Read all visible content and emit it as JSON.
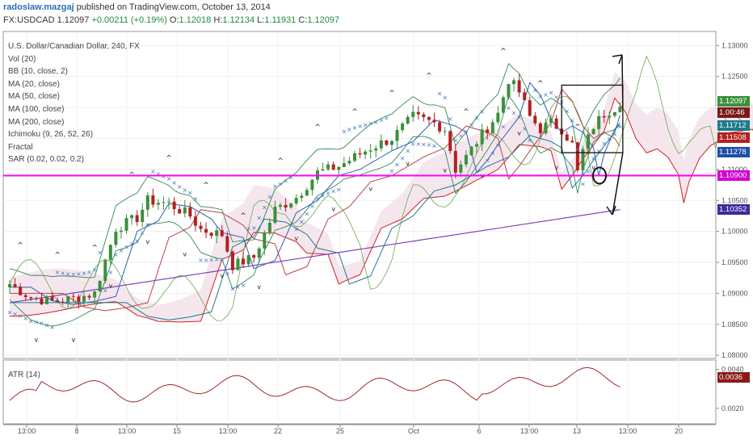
{
  "header": {
    "author": "radoslaw.mazgaj",
    "published": " published on TradingView.com, October 13, 2014",
    "symbol": "FX:USDCAD",
    "price": "1.12097",
    "change": "+0.00211 (+0.19%)",
    "o_label": "O:",
    "o": "1.12018",
    "h_label": "H:",
    "h": "1.12134",
    "l_label": "L:",
    "l": "1.11931",
    "c_label": "C:",
    "c": "1.12097"
  },
  "legend": [
    "U.S. Dollar/Canadian Dollar, 240, FX",
    "Vol (20)",
    "BB (10, close, 2)",
    "MA (20, close)",
    "MA (50, close)",
    "MA (100, close)",
    "MA (200, close)",
    "Ichimoku (9, 26, 52, 26)",
    "Fractal",
    "SAR (0.02, 0.02, 0.2)"
  ],
  "atr_label": "ATR (14)",
  "price_tags": [
    {
      "text": "1.12097",
      "value": 1.12097,
      "color": "#3c8f3c"
    },
    {
      "text": "1.00:46",
      "value": 1.1192,
      "color": "#7a1a1a"
    },
    {
      "text": "1.11712",
      "value": 1.11712,
      "color": "#1f7a8c"
    },
    {
      "text": "1.11508",
      "value": 1.11508,
      "color": "#b22020"
    },
    {
      "text": "1.11278",
      "value": 1.11278,
      "color": "#1f4fa8"
    },
    {
      "text": "1.10900",
      "value": 1.109,
      "color": "#d100d1"
    },
    {
      "text": "1.10352",
      "value": 1.10352,
      "color": "#3b2a9a"
    }
  ],
  "atr_tags": [
    {
      "text": "0.0036",
      "value": 0.0036,
      "color": "#8a1a1a"
    }
  ],
  "colors": {
    "up": "#3c8f3c",
    "down": "#b22020",
    "bb": "#2e8b57",
    "ma": "#2a5fb0",
    "ma100": "#1f7a8c",
    "ma200": "#7d3fb8",
    "sar": "#4a78c2",
    "kijun": "#d02020",
    "senkou": "#6aa84f",
    "cloud": "#f5e6ee",
    "hline": "#ff00ff",
    "atr": "#a02828"
  },
  "chart_data": [
    {
      "type": "candlestick",
      "title": "U.S. Dollar/Canadian Dollar, 240, FX",
      "x_ticks": [
        "13:00",
        "8",
        "13:00",
        "15",
        "13:00",
        "22",
        "25",
        "Oct",
        "6",
        "13:00",
        "13",
        "13:00",
        "20"
      ],
      "y_ticks": [
        "1.13000",
        "1.12500",
        "1.12000",
        "1.11500",
        "1.11000",
        "1.10500",
        "1.10000",
        "1.09500",
        "1.09000",
        "1.08500",
        "1.08000"
      ],
      "ylim": [
        1.0795,
        1.132
      ],
      "horizontal_line": 1.109,
      "close_path": [
        [
          0,
          1.0915
        ],
        [
          4,
          1.0893
        ],
        [
          8,
          1.0887
        ],
        [
          12,
          1.0892
        ],
        [
          16,
          1.09
        ],
        [
          20,
          1.1005
        ],
        [
          24,
          1.1022
        ],
        [
          26,
          1.105
        ],
        [
          30,
          1.1045
        ],
        [
          34,
          1.1025
        ],
        [
          36,
          1.1003
        ],
        [
          40,
          1.0995
        ],
        [
          42,
          1.0945
        ],
        [
          46,
          1.0958
        ],
        [
          50,
          1.1035
        ],
        [
          54,
          1.1055
        ],
        [
          58,
          1.1095
        ],
        [
          62,
          1.1105
        ],
        [
          66,
          1.1125
        ],
        [
          68,
          1.1135
        ],
        [
          72,
          1.115
        ],
        [
          76,
          1.1185
        ],
        [
          80,
          1.1175
        ],
        [
          82,
          1.1165
        ],
        [
          84,
          1.11
        ],
        [
          86,
          1.112
        ],
        [
          88,
          1.1145
        ],
        [
          92,
          1.119
        ],
        [
          94,
          1.1245
        ],
        [
          96,
          1.1225
        ],
        [
          98,
          1.1185
        ],
        [
          100,
          1.1165
        ],
        [
          102,
          1.1175
        ],
        [
          104,
          1.1165
        ],
        [
          106,
          1.114
        ],
        [
          107,
          1.1095
        ],
        [
          108,
          1.113
        ],
        [
          110,
          1.117
        ],
        [
          112,
          1.119
        ],
        [
          114,
          1.12
        ],
        [
          115,
          1.12097
        ]
      ],
      "indicators": [
        "Vol (20)",
        "BB (10, close, 2)",
        "MA (20, close)",
        "MA (50, close)",
        "MA (100, close)",
        "MA (200, close)",
        "Ichimoku (9, 26, 52, 26)",
        "Fractal",
        "SAR (0.02, 0.02, 0.2)"
      ]
    },
    {
      "type": "line",
      "title": "ATR (14)",
      "y_ticks": [
        "0.0040",
        "0.0020"
      ],
      "ylim": [
        0.0012,
        0.0044
      ],
      "last": 0.0036
    }
  ]
}
